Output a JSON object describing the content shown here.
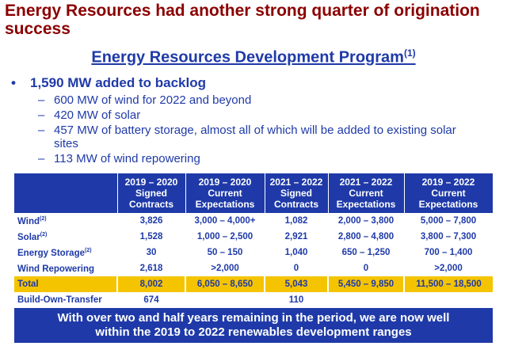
{
  "title": "Energy Resources had another strong quarter of origination success",
  "subtitle": {
    "text": "Energy Resources Development Program",
    "footnote": "(1)"
  },
  "bullets": {
    "main": {
      "marker": "•",
      "text": "1,590 MW added to backlog"
    },
    "subs": [
      {
        "marker": "–",
        "text": "600 MW of wind for 2022 and beyond"
      },
      {
        "marker": "–",
        "text": "420 MW of solar"
      },
      {
        "marker": "–",
        "text": "457 MW of battery storage, almost all of which will be added to existing solar sites"
      },
      {
        "marker": "–",
        "text": "113 MW of wind repowering"
      }
    ]
  },
  "table": {
    "headers": [
      "",
      "2019 – 2020 Signed Contracts",
      "2019 – 2020 Current Expectations",
      "2021 – 2022 Signed Contracts",
      "2021 – 2022 Current Expectations",
      "2019 – 2022 Current Expectations"
    ],
    "rows": [
      {
        "label": "Wind",
        "note": "(2)",
        "cells": [
          "3,826",
          "3,000 – 4,000+",
          "1,082",
          "2,000 – 3,800",
          "5,000 – 7,800"
        ]
      },
      {
        "label": "Solar",
        "note": "(2)",
        "cells": [
          "1,528",
          "1,000 – 2,500",
          "2,921",
          "2,800 – 4,800",
          "3,800 – 7,300"
        ]
      },
      {
        "label": "Energy Storage",
        "note": "(2)",
        "cells": [
          "30",
          "50 – 150",
          "1,040",
          "650 – 1,250",
          "700 – 1,400"
        ]
      },
      {
        "label": "Wind Repowering",
        "note": "",
        "cells": [
          "2,618",
          ">2,000",
          "0",
          "0",
          ">2,000"
        ]
      }
    ],
    "total": {
      "label": "Total",
      "cells": [
        "8,002",
        "6,050 – 8,650",
        "5,043",
        "5,450 – 9,850",
        "11,500 – 18,500"
      ]
    },
    "bot": {
      "label": "Build-Own-Transfer",
      "cells": [
        "674",
        "",
        "110",
        "",
        ""
      ]
    }
  },
  "banner": {
    "line1": "With over two and half years remaining in the period, we are now well",
    "line2": "within the 2019 to 2022 renewables development ranges"
  },
  "colors": {
    "title": "#8b0000",
    "accent": "#1f3aa8",
    "highlight": "#f5c400"
  }
}
